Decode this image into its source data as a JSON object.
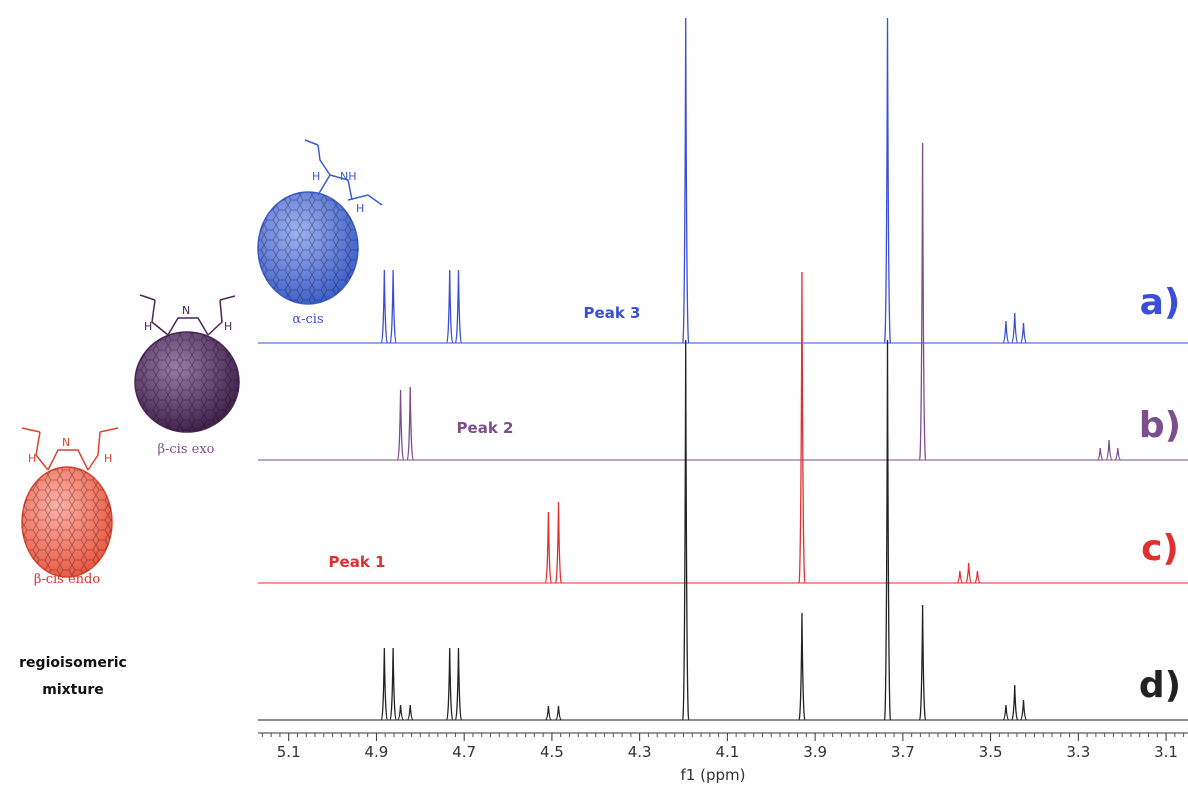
{
  "chart_data": {
    "type": "nmr",
    "x_label": "f1 (ppm)",
    "xlim": [
      5.17,
      3.05
    ],
    "xticks": [
      5.1,
      4.9,
      4.7,
      4.5,
      4.3,
      4.1,
      3.9,
      3.7,
      3.5,
      3.3,
      3.1
    ],
    "series": [
      {
        "name": "a)",
        "color": "#3a4ed8",
        "annotation": "Peak 3",
        "structure": "α-cis",
        "x": [
          4.882,
          4.862,
          4.733,
          4.713,
          4.195,
          3.735,
          3.465,
          3.445,
          3.425
        ],
        "heights": [
          73,
          73,
          73,
          73,
          325,
          325,
          22,
          30,
          20
        ]
      },
      {
        "name": "b)",
        "color": "#7b4f8e",
        "annotation": "Peak 2",
        "structure": "β-cis exo",
        "x": [
          4.845,
          4.823,
          3.655,
          3.25,
          3.23,
          3.21
        ],
        "heights": [
          70,
          73,
          317,
          12,
          20,
          12
        ]
      },
      {
        "name": "c)",
        "color": "#e03030",
        "annotation": "Peak 1",
        "structure": "β-cis endo",
        "x": [
          4.508,
          4.485,
          3.93,
          3.57,
          3.55,
          3.53
        ],
        "heights": [
          71,
          81,
          311,
          12,
          20,
          12
        ]
      },
      {
        "name": "d)",
        "color": "#222222",
        "structure": "regioisomeric mixture",
        "x": [
          4.882,
          4.862,
          4.845,
          4.823,
          4.733,
          4.713,
          4.508,
          4.485,
          4.195,
          3.93,
          3.735,
          3.655,
          3.465,
          3.445,
          3.425
        ],
        "heights": [
          72,
          72,
          15,
          15,
          72,
          72,
          14,
          14,
          380,
          107,
          380,
          115,
          15,
          35,
          20
        ]
      }
    ]
  }
}
